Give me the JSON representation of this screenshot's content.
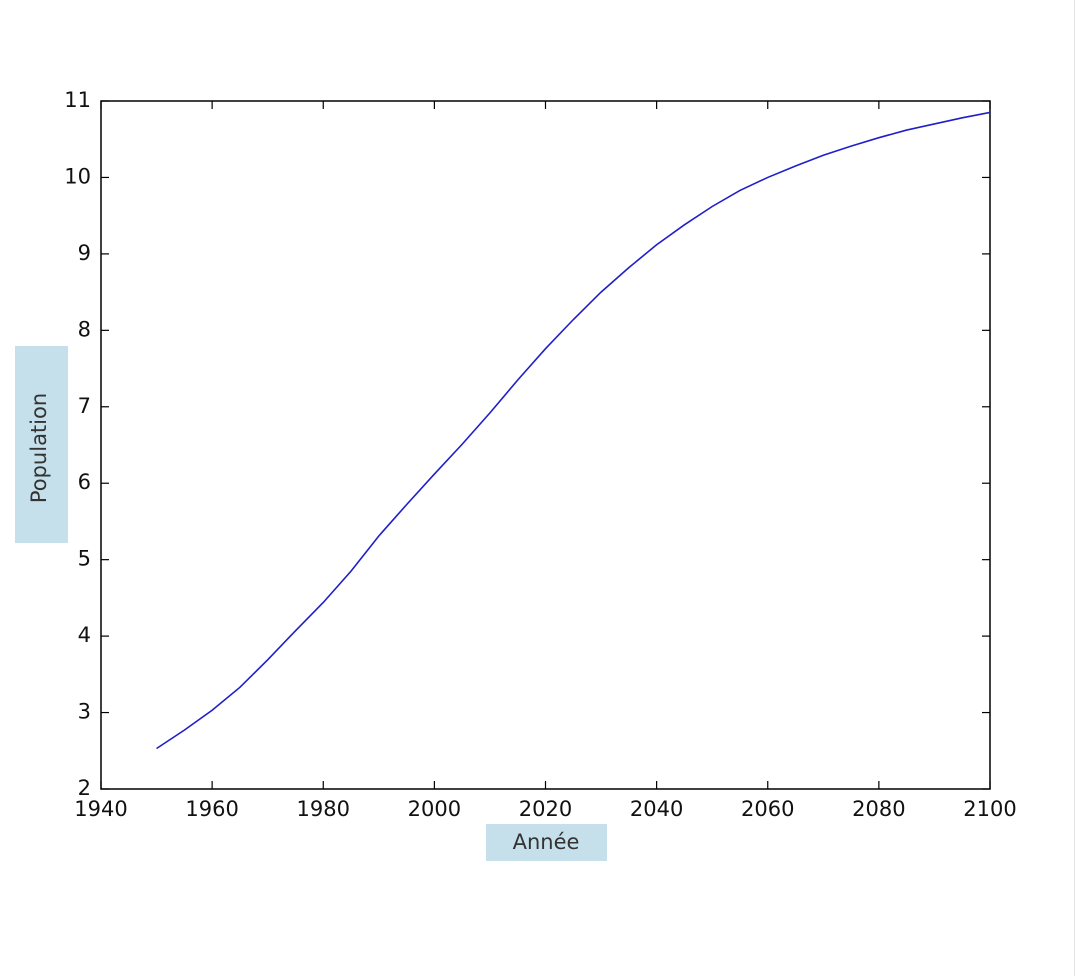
{
  "chart_data": {
    "type": "line",
    "x_label": "Année",
    "y_label": "Population",
    "x": [
      1950,
      1955,
      1960,
      1965,
      1970,
      1975,
      1980,
      1985,
      1990,
      1995,
      2000,
      2005,
      2010,
      2015,
      2020,
      2025,
      2030,
      2035,
      2040,
      2045,
      2050,
      2055,
      2060,
      2065,
      2070,
      2075,
      2080,
      2085,
      2090,
      2095,
      2100
    ],
    "series": [
      {
        "name": "Population",
        "color": "#1f1fc8",
        "values": [
          2.53,
          2.77,
          3.03,
          3.33,
          3.69,
          4.07,
          4.44,
          4.85,
          5.31,
          5.72,
          6.12,
          6.51,
          6.92,
          7.35,
          7.76,
          8.14,
          8.5,
          8.82,
          9.12,
          9.38,
          9.62,
          9.83,
          10.0,
          10.15,
          10.29,
          10.41,
          10.52,
          10.62,
          10.7,
          10.78,
          10.85
        ]
      }
    ],
    "xlim": [
      1940,
      2100
    ],
    "xticks": [
      1940,
      1960,
      1980,
      2000,
      2020,
      2040,
      2060,
      2080,
      2100
    ],
    "ylim": [
      2,
      11
    ],
    "yticks": [
      2,
      3,
      4,
      5,
      6,
      7,
      8,
      9,
      10,
      11
    ],
    "grid": false,
    "label_background": "#c5e0eb"
  }
}
